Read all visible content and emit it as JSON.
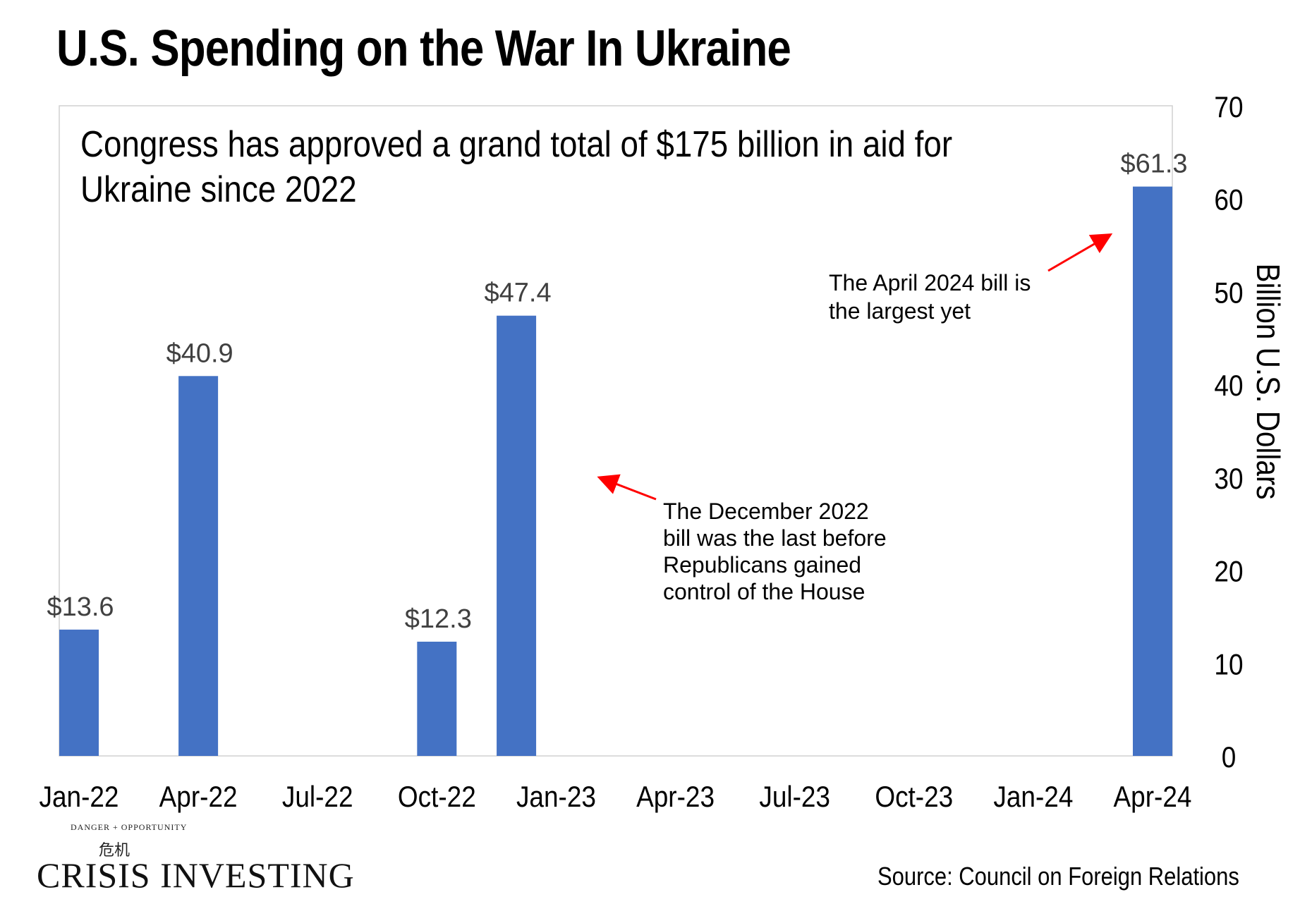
{
  "header": {
    "title": "U.S. Spending on the War In Ukraine"
  },
  "chart_data": {
    "type": "bar",
    "subtitle_lines": [
      "Congress has approved a grand total of $175 billion in aid for",
      "Ukraine since 2022"
    ],
    "x_ticks": [
      "Jan-22",
      "Apr-22",
      "Jul-22",
      "Oct-22",
      "Jan-23",
      "Apr-23",
      "Jul-23",
      "Oct-23",
      "Jan-24",
      "Apr-24"
    ],
    "bars": [
      {
        "month_index": 0,
        "value": 13.6,
        "label": "$13.6"
      },
      {
        "month_index": 3,
        "value": 40.9,
        "label": "$40.9"
      },
      {
        "month_index": 9,
        "value": 12.3,
        "label": "$12.3"
      },
      {
        "month_index": 11,
        "value": 47.4,
        "label": "$47.4"
      },
      {
        "month_index": 27,
        "value": 61.3,
        "label": "$61.3"
      }
    ],
    "ylabel": "Billion U.S. Dollars",
    "ylim": [
      0,
      70
    ],
    "y_ticks": [
      0,
      10,
      20,
      30,
      40,
      50,
      60,
      70
    ],
    "y_axis_side": "right",
    "bar_color": "#4472C4",
    "arrow_color": "#FF0000",
    "annotations": [
      {
        "id": "april-2024",
        "lines": [
          "The April 2024 bill is",
          "the largest yet"
        ],
        "points_to_month_index": 27
      },
      {
        "id": "december-2022",
        "lines": [
          "The December 2022",
          "bill was the last before",
          "Republicans gained",
          "control of the House"
        ],
        "points_to_month_index": 11
      }
    ]
  },
  "footer": {
    "logo_tagline": "DANGER + OPPORTUNITY",
    "logo_seal": "危机",
    "logo_name": "CRISIS INVESTING",
    "source": "Source: Council on Foreign Relations"
  }
}
